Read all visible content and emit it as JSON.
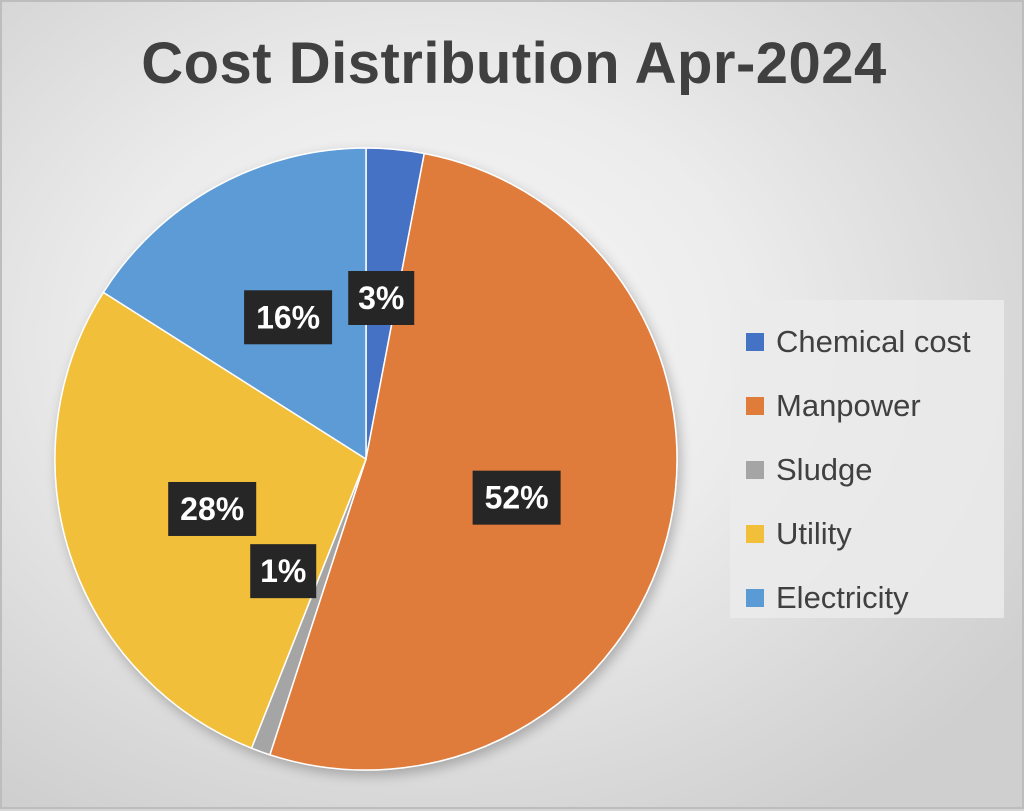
{
  "chart_data": {
    "type": "pie",
    "title": "Cost Distribution Apr-2024",
    "categories": [
      "Chemical cost",
      "Manpower",
      "Sludge",
      "Utility",
      "Electricity"
    ],
    "values": [
      3,
      52,
      1,
      28,
      16
    ],
    "labels": [
      "3%",
      "52%",
      "1%",
      "28%",
      "16%"
    ],
    "colors": [
      "#4472c4",
      "#e07c3a",
      "#a5a5a5",
      "#f2bf3a",
      "#5b9bd5"
    ],
    "legend_position": "right",
    "unit": "%"
  }
}
